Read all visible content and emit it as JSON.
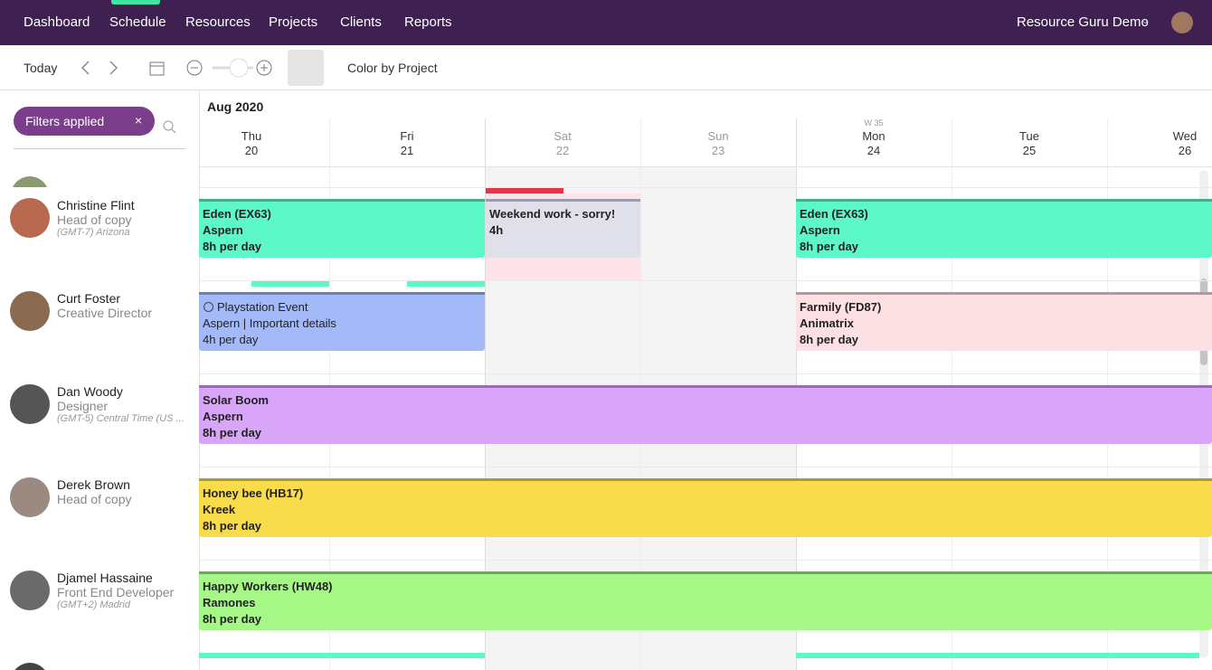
{
  "nav": {
    "items": [
      "Dashboard",
      "Schedule",
      "Resources",
      "Projects",
      "Clients",
      "Reports"
    ],
    "account": "Resource Guru Demo"
  },
  "toolbar": {
    "today": "Today",
    "color_by": "Color by Project"
  },
  "filters": {
    "label": "Filters applied"
  },
  "calendar": {
    "month": "Aug 2020",
    "week_label": "W 35",
    "days": [
      {
        "name": "Thu",
        "date": 20
      },
      {
        "name": "Fri",
        "date": 21
      },
      {
        "name": "Sat",
        "date": 22
      },
      {
        "name": "Sun",
        "date": 23
      },
      {
        "name": "Mon",
        "date": 24
      },
      {
        "name": "Tue",
        "date": 25
      },
      {
        "name": "Wed",
        "date": 26
      }
    ]
  },
  "people": [
    {
      "name": "Christine Flint",
      "role": "Head of copy",
      "timezone": "(GMT-7) Arizona",
      "bookings": [
        {
          "title": "Eden (EX63)",
          "client": "Aspern",
          "hours": "8h per day"
        },
        {
          "title": "Weekend work - sorry!",
          "hours": "4h"
        },
        {
          "title": "Eden (EX63)",
          "client": "Aspern",
          "hours": "8h per day"
        }
      ]
    },
    {
      "name": "Curt Foster",
      "role": "Creative Director",
      "bookings": [
        {
          "title": "Playstation Event",
          "client": "Aspern | Important details",
          "hours": "4h per day"
        },
        {
          "title": "Farmily (FD87)",
          "client": "Animatrix",
          "hours": "8h per day"
        }
      ]
    },
    {
      "name": "Dan Woody",
      "role": "Designer",
      "timezone": "(GMT-5) Central Time (US ...",
      "bookings": [
        {
          "title": "Solar Boom",
          "client": "Aspern",
          "hours": "8h per day"
        }
      ]
    },
    {
      "name": "Derek Brown",
      "role": "Head of copy",
      "bookings": [
        {
          "title": "Honey bee (HB17)",
          "client": "Kreek",
          "hours": "8h per day"
        }
      ]
    },
    {
      "name": "Djamel Hassaine",
      "role": "Front End Developer",
      "timezone": "(GMT+2) Madrid",
      "bookings": [
        {
          "title": "Happy Workers (HW48)",
          "client": "Ramones",
          "hours": "8h per day"
        }
      ]
    }
  ]
}
